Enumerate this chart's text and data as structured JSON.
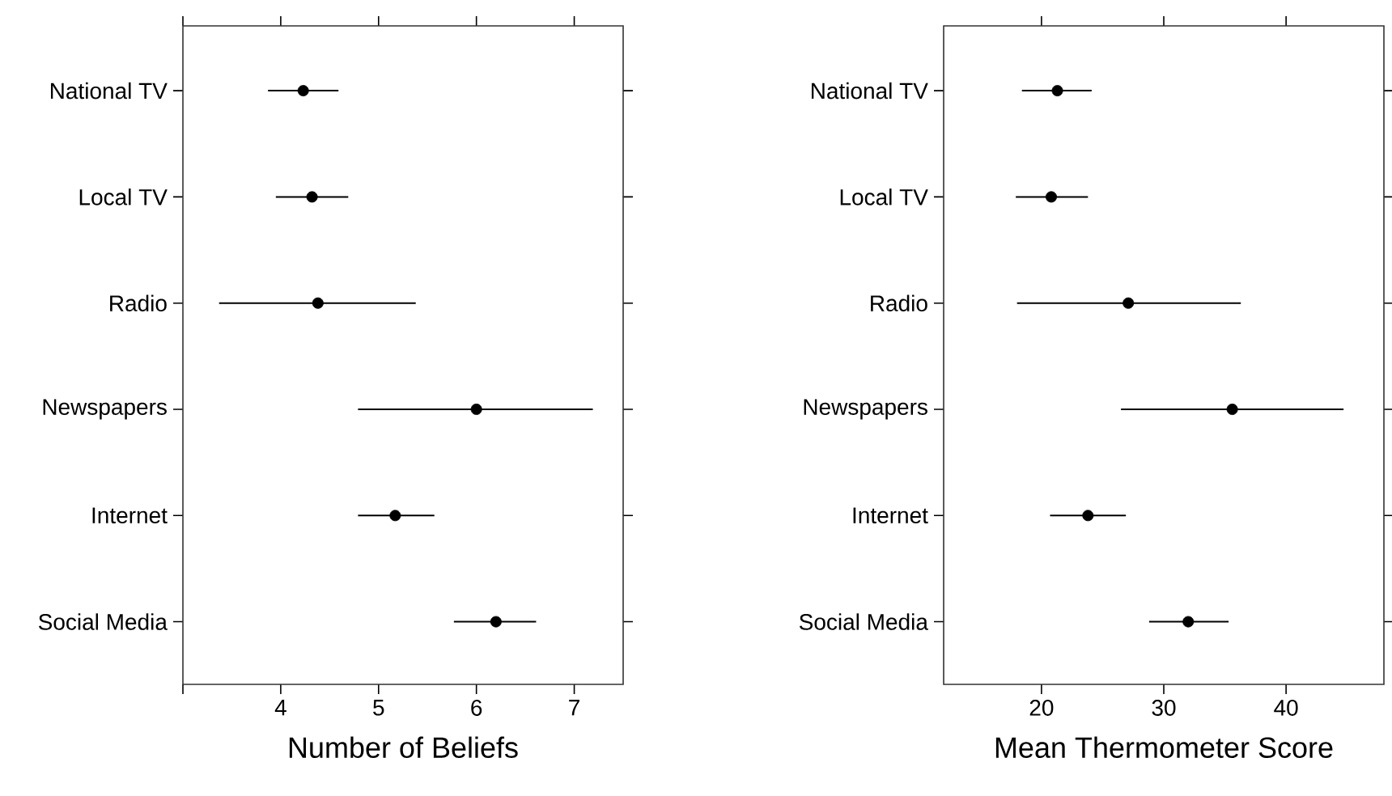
{
  "chart_data": [
    {
      "type": "scatter",
      "orientation": "horizontal",
      "marker": "circle",
      "color": "#000000",
      "categories": [
        "National TV",
        "Local TV",
        "Radio",
        "Newspapers",
        "Internet",
        "Social Media"
      ],
      "values": [
        4.23,
        4.32,
        4.38,
        6.0,
        5.17,
        6.2
      ],
      "errors": [
        [
          3.87,
          4.59
        ],
        [
          3.95,
          4.69
        ],
        [
          3.37,
          5.38
        ],
        [
          4.79,
          7.19
        ],
        [
          4.79,
          5.57
        ],
        [
          5.77,
          6.61
        ]
      ],
      "xlim": [
        3,
        7.5
      ],
      "xticks": [
        {
          "value": 3,
          "label": null
        },
        4,
        5,
        6,
        7
      ],
      "xlabel": "Number of Beliefs"
    },
    {
      "type": "scatter",
      "orientation": "horizontal",
      "marker": "circle",
      "color": "#000000",
      "categories": [
        "National TV",
        "Local TV",
        "Radio",
        "Newspapers",
        "Internet",
        "Social Media"
      ],
      "values": [
        21.3,
        20.8,
        27.1,
        35.6,
        23.8,
        32.0
      ],
      "errors": [
        [
          18.4,
          24.1
        ],
        [
          17.9,
          23.8
        ],
        [
          18.0,
          36.3
        ],
        [
          26.5,
          44.7
        ],
        [
          20.7,
          26.9
        ],
        [
          28.8,
          35.3
        ]
      ],
      "xlim": [
        12,
        48
      ],
      "xticks": [
        20,
        30,
        40
      ],
      "xlabel": "Mean Thermometer Score"
    }
  ]
}
